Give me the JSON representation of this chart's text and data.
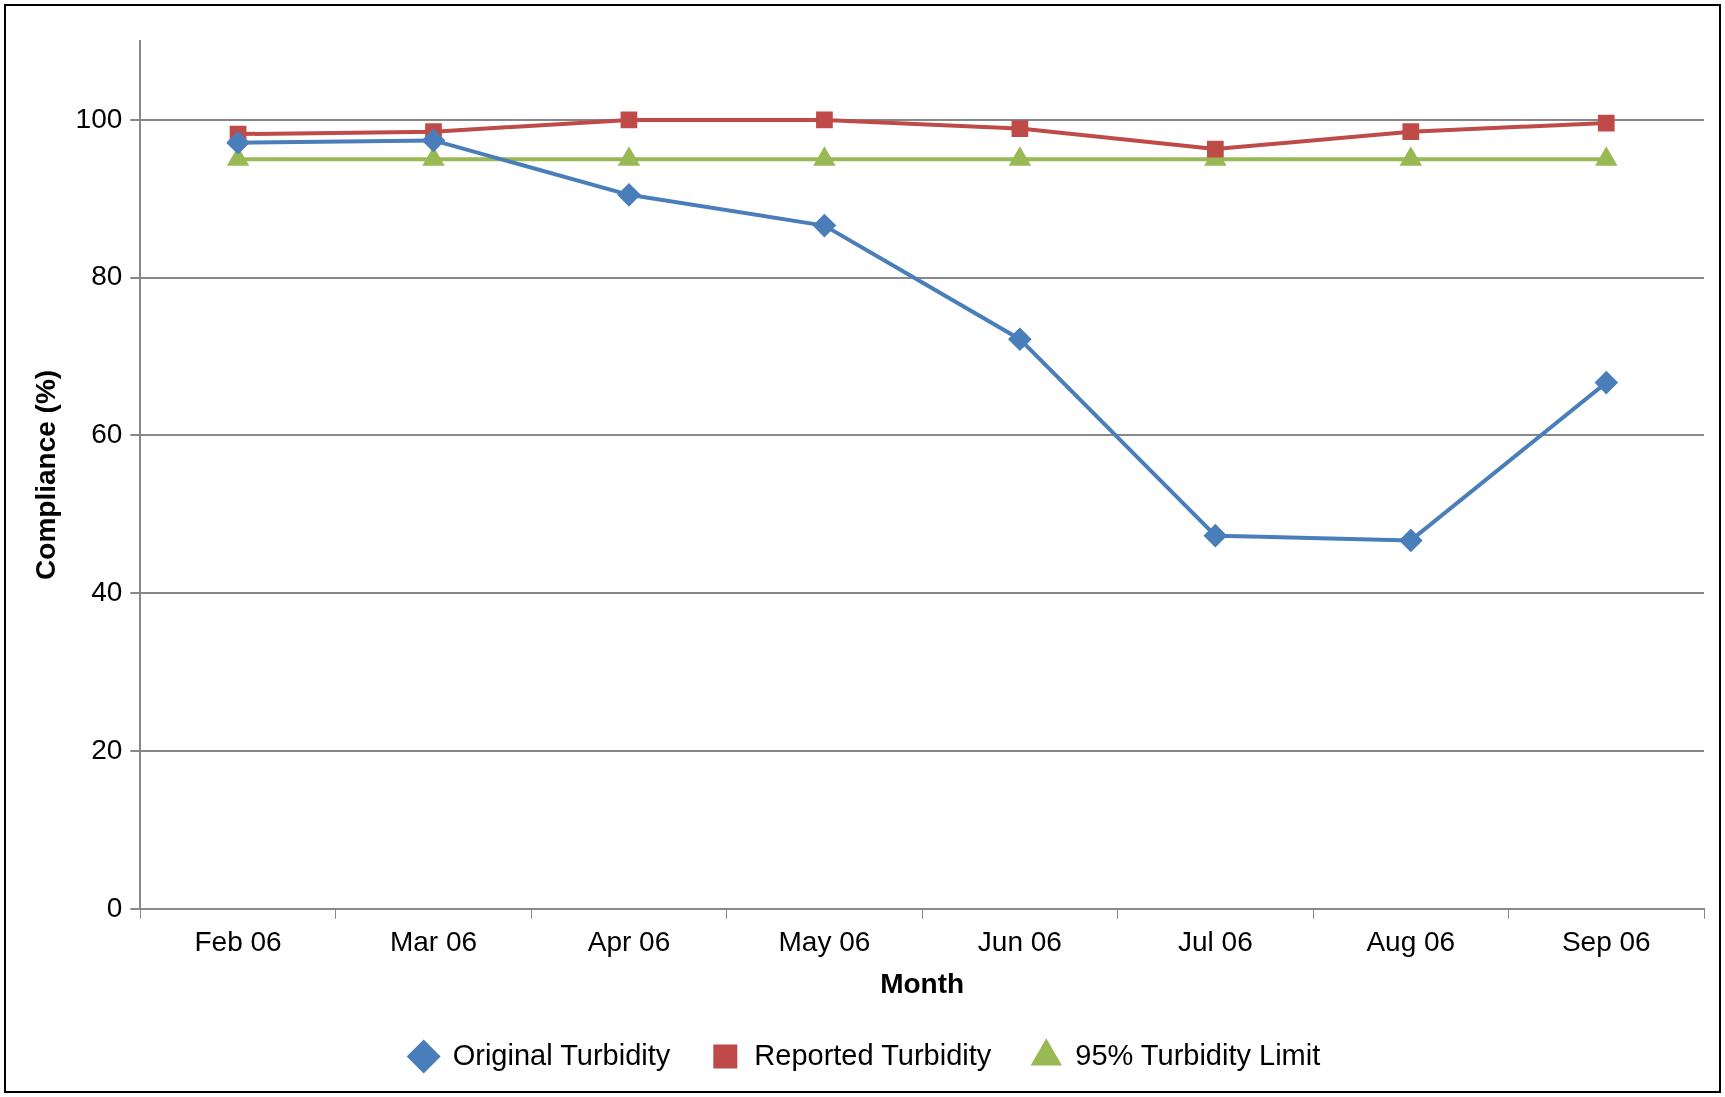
{
  "chart_data": {
    "type": "line",
    "xlabel": "Month",
    "ylabel": "Compliance (%)",
    "categories": [
      "Feb 06",
      "Mar 06",
      "Apr 06",
      "May 06",
      "Jun 06",
      "Jul 06",
      "Aug 06",
      "Sep 06"
    ],
    "series": [
      {
        "name": "Original Turbidity",
        "color": "#4a7ebb",
        "marker": "diamond",
        "values": [
          97.1,
          97.4,
          90.5,
          86.6,
          72.2,
          47.3,
          46.7,
          66.7
        ]
      },
      {
        "name": "Reported Turbidity",
        "color": "#be4b48",
        "marker": "square",
        "values": [
          98.2,
          98.5,
          100,
          100,
          98.9,
          96.3,
          98.5,
          99.6
        ]
      },
      {
        "name": "95% Turbidity Limit",
        "color": "#98b954",
        "marker": "triangle",
        "values": [
          95,
          95,
          95,
          95,
          95,
          95,
          95,
          95
        ]
      }
    ],
    "ylim": [
      0,
      110
    ],
    "yticks": [
      0,
      20,
      40,
      60,
      80,
      100
    ],
    "grid": "y",
    "legend": "bottom",
    "line_style": "solid"
  }
}
